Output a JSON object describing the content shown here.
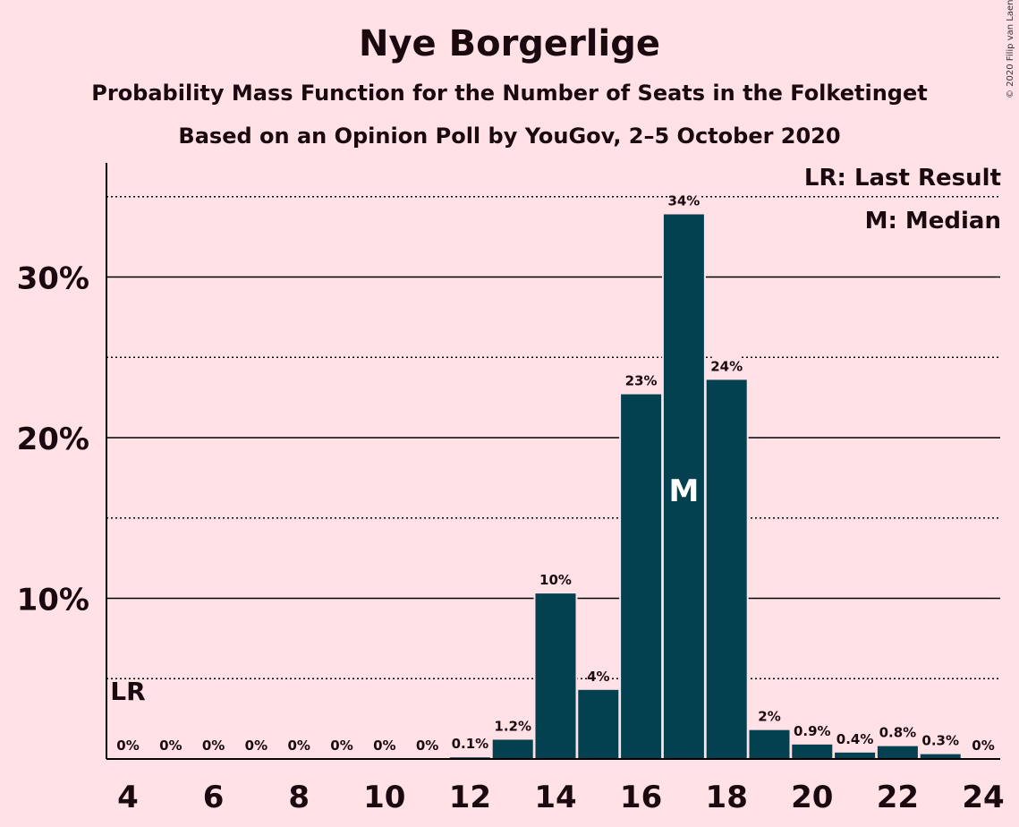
{
  "header": {
    "title": "Nye Borgerlige",
    "subtitle": "Probability Mass Function for the Number of Seats in the Folketinget",
    "subtitle2": "Based on an Opinion Poll by YouGov, 2–5 October 2020",
    "copyright": "© 2020 Filip van Laenen"
  },
  "legend": {
    "last_result": "LR: Last Result",
    "median": "M: Median"
  },
  "colors": {
    "bar": "#034050",
    "background": "#ffe1e6",
    "text": "#1a0a10"
  },
  "chart_data": {
    "type": "bar",
    "x": [
      4,
      5,
      6,
      7,
      8,
      9,
      10,
      11,
      12,
      13,
      14,
      15,
      16,
      17,
      18,
      19,
      20,
      21,
      22,
      23,
      24
    ],
    "values": [
      0,
      0,
      0,
      0,
      0,
      0,
      0,
      0,
      0.1,
      1.2,
      10.3,
      4.3,
      22.7,
      33.9,
      23.6,
      1.8,
      0.9,
      0.4,
      0.8,
      0.3,
      0
    ],
    "data_labels": [
      "0%",
      "0%",
      "0%",
      "0%",
      "0%",
      "0%",
      "0%",
      "0%",
      "0.1%",
      "1.2%",
      "10%",
      "4%",
      "23%",
      "34%",
      "24%",
      "2%",
      "0.9%",
      "0.4%",
      "0.8%",
      "0.3%",
      "0%"
    ],
    "x_ticks": [
      "4",
      "6",
      "8",
      "10",
      "12",
      "14",
      "16",
      "18",
      "20",
      "22",
      "24"
    ],
    "y_ticks": [
      "10%",
      "20%",
      "30%"
    ],
    "ylim": [
      0,
      37
    ],
    "median_x": 17,
    "median_label": "M",
    "last_result_x": 4,
    "last_result_label": "LR",
    "grid": true,
    "legend_position": "top-right"
  }
}
